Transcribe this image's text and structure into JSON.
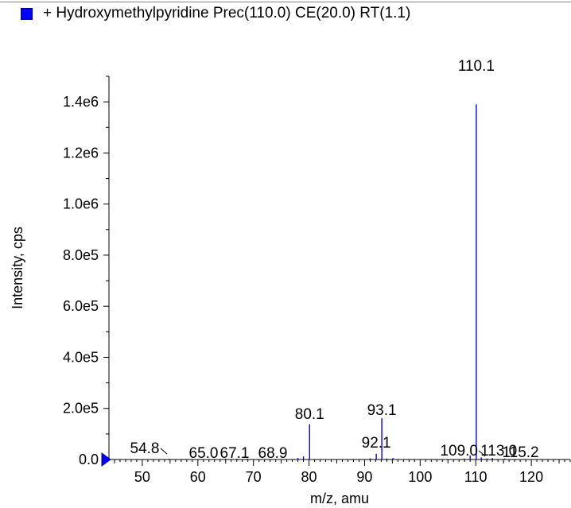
{
  "chart_data": {
    "type": "bar",
    "legend": [
      {
        "name": "+ Hydroxymethylpyridine Prec(110.0) CE(20.0) RT(1.1)",
        "color": "#0000ff",
        "position": "top-left"
      }
    ],
    "xlabel": "m/z, amu",
    "ylabel": "Intensity, cps",
    "xlim": [
      44,
      127
    ],
    "ylim": [
      0,
      1500000
    ],
    "xticks": [
      50,
      60,
      70,
      80,
      90,
      100,
      110,
      120
    ],
    "yticks": [
      {
        "value": 0,
        "label": "0.0"
      },
      {
        "value": 200000,
        "label": "2.0e5"
      },
      {
        "value": 400000,
        "label": "4.0e5"
      },
      {
        "value": 600000,
        "label": "6.0e5"
      },
      {
        "value": 800000,
        "label": "8.0e5"
      },
      {
        "value": 1000000,
        "label": "1.0e6"
      },
      {
        "value": 1200000,
        "label": "1.2e6"
      },
      {
        "value": 1400000,
        "label": "1.4e6"
      }
    ],
    "grid": false,
    "series": [
      {
        "name": "+ Hydroxymethylpyridine Prec(110.0) CE(20.0) RT(1.1)",
        "color": "#0000ff",
        "points": [
          {
            "x": 54.8,
            "y": 3000,
            "label": "54.8"
          },
          {
            "x": 65.0,
            "y": 3000,
            "label": "65.0"
          },
          {
            "x": 67.1,
            "y": 3000,
            "label": "67.1"
          },
          {
            "x": 68.9,
            "y": 3000,
            "label": "68.9"
          },
          {
            "x": 78.0,
            "y": 6000
          },
          {
            "x": 79.0,
            "y": 12000
          },
          {
            "x": 80.1,
            "y": 138000,
            "label": "80.1"
          },
          {
            "x": 91.0,
            "y": 5000
          },
          {
            "x": 92.1,
            "y": 22000,
            "label": "92.1"
          },
          {
            "x": 93.1,
            "y": 162000,
            "label": "93.1"
          },
          {
            "x": 94.0,
            "y": 4000
          },
          {
            "x": 95.1,
            "y": 6000
          },
          {
            "x": 107.9,
            "y": 4000
          },
          {
            "x": 109.0,
            "y": 16000,
            "label": "109.0"
          },
          {
            "x": 110.1,
            "y": 1390000,
            "label": "110.1"
          },
          {
            "x": 111.0,
            "y": 8000
          },
          {
            "x": 112.0,
            "y": 4000
          },
          {
            "x": 113.0,
            "y": 6000,
            "label": "113.0"
          },
          {
            "x": 115.2,
            "y": 4000,
            "label": "115.2"
          }
        ]
      }
    ]
  }
}
